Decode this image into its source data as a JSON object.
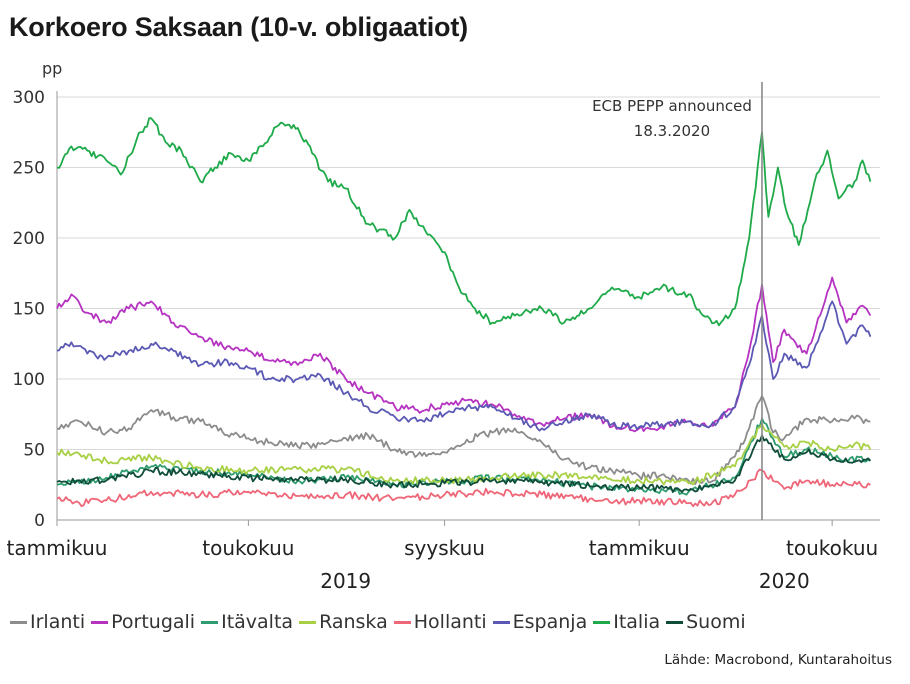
{
  "title": "Korkoero Saksaan (10-v. obligaatiot)",
  "source": "Lähde: Macrobond, Kuntarahoitus",
  "chart_data": {
    "type": "line",
    "title": "Korkoero Saksaan (10-v. obligaatiot)",
    "unit": "pp",
    "xlabel": "",
    "ylabel": "pp",
    "ylim": [
      0,
      300
    ],
    "y_ticks": [
      0,
      50,
      100,
      150,
      200,
      250,
      300
    ],
    "xlim": [
      "2019-01-01",
      "2020-05-31"
    ],
    "x_ticks": [
      {
        "date": "2019-01-01",
        "label": "tammikuu"
      },
      {
        "date": "2019-05-01",
        "label": "toukokuu"
      },
      {
        "date": "2019-09-01",
        "label": "syyskuu"
      },
      {
        "date": "2020-01-01",
        "label": "tammikuu"
      },
      {
        "date": "2020-05-01",
        "label": "toukokuu"
      }
    ],
    "year_labels": [
      {
        "date": "2019-07-01",
        "label": "2019"
      },
      {
        "date": "2020-04-01",
        "label": "2020"
      }
    ],
    "grid": true,
    "legend_position": "bottom",
    "annotation": {
      "date": "2020-03-18",
      "lines": [
        "ECB PEPP announced",
        "18.3.2020"
      ]
    },
    "series": [
      {
        "name": "Irlanti",
        "color": "#8c8c8c",
        "points": [
          [
            "2019-01-01",
            65
          ],
          [
            "2019-01-15",
            70
          ],
          [
            "2019-02-01",
            62
          ],
          [
            "2019-02-15",
            65
          ],
          [
            "2019-03-01",
            78
          ],
          [
            "2019-03-15",
            73
          ],
          [
            "2019-04-01",
            70
          ],
          [
            "2019-04-15",
            62
          ],
          [
            "2019-05-01",
            58
          ],
          [
            "2019-05-15",
            55
          ],
          [
            "2019-06-01",
            52
          ],
          [
            "2019-06-15",
            54
          ],
          [
            "2019-07-01",
            58
          ],
          [
            "2019-07-15",
            60
          ],
          [
            "2019-08-01",
            50
          ],
          [
            "2019-08-15",
            46
          ],
          [
            "2019-09-01",
            48
          ],
          [
            "2019-09-15",
            57
          ],
          [
            "2019-10-01",
            62
          ],
          [
            "2019-10-15",
            65
          ],
          [
            "2019-11-01",
            55
          ],
          [
            "2019-11-15",
            43
          ],
          [
            "2019-12-01",
            37
          ],
          [
            "2019-12-15",
            35
          ],
          [
            "2020-01-01",
            31
          ],
          [
            "2020-01-15",
            32
          ],
          [
            "2020-02-01",
            28
          ],
          [
            "2020-02-15",
            27
          ],
          [
            "2020-03-01",
            45
          ],
          [
            "2020-03-10",
            65
          ],
          [
            "2020-03-18",
            88
          ],
          [
            "2020-03-25",
            62
          ],
          [
            "2020-04-01",
            58
          ],
          [
            "2020-04-15",
            72
          ],
          [
            "2020-05-01",
            70
          ],
          [
            "2020-05-15",
            72
          ],
          [
            "2020-05-25",
            70
          ]
        ]
      },
      {
        "name": "Portugali",
        "color": "#b633c2",
        "points": [
          [
            "2019-01-01",
            150
          ],
          [
            "2019-01-10",
            160
          ],
          [
            "2019-01-20",
            147
          ],
          [
            "2019-02-01",
            140
          ],
          [
            "2019-02-15",
            150
          ],
          [
            "2019-03-01",
            155
          ],
          [
            "2019-03-15",
            140
          ],
          [
            "2019-04-01",
            130
          ],
          [
            "2019-04-15",
            123
          ],
          [
            "2019-05-01",
            120
          ],
          [
            "2019-05-15",
            113
          ],
          [
            "2019-06-01",
            110
          ],
          [
            "2019-06-15",
            118
          ],
          [
            "2019-07-01",
            100
          ],
          [
            "2019-07-15",
            90
          ],
          [
            "2019-08-01",
            80
          ],
          [
            "2019-08-15",
            78
          ],
          [
            "2019-09-01",
            82
          ],
          [
            "2019-09-15",
            85
          ],
          [
            "2019-10-01",
            82
          ],
          [
            "2019-10-15",
            75
          ],
          [
            "2019-11-01",
            68
          ],
          [
            "2019-11-15",
            72
          ],
          [
            "2019-12-01",
            75
          ],
          [
            "2019-12-15",
            66
          ],
          [
            "2020-01-01",
            65
          ],
          [
            "2020-01-15",
            66
          ],
          [
            "2020-02-01",
            70
          ],
          [
            "2020-02-15",
            67
          ],
          [
            "2020-03-01",
            80
          ],
          [
            "2020-03-10",
            120
          ],
          [
            "2020-03-18",
            167
          ],
          [
            "2020-03-25",
            112
          ],
          [
            "2020-04-01",
            135
          ],
          [
            "2020-04-15",
            118
          ],
          [
            "2020-04-25",
            150
          ],
          [
            "2020-05-01",
            172
          ],
          [
            "2020-05-10",
            140
          ],
          [
            "2020-05-20",
            152
          ],
          [
            "2020-05-25",
            145
          ]
        ]
      },
      {
        "name": "Itävalta",
        "color": "#2e9c6e",
        "points": [
          [
            "2019-01-01",
            25
          ],
          [
            "2019-02-01",
            30
          ],
          [
            "2019-03-01",
            38
          ],
          [
            "2019-04-01",
            35
          ],
          [
            "2019-05-01",
            32
          ],
          [
            "2019-06-01",
            28
          ],
          [
            "2019-07-01",
            30
          ],
          [
            "2019-08-01",
            25
          ],
          [
            "2019-09-01",
            27
          ],
          [
            "2019-10-01",
            30
          ],
          [
            "2019-11-01",
            28
          ],
          [
            "2019-12-01",
            24
          ],
          [
            "2020-01-01",
            22
          ],
          [
            "2020-02-01",
            20
          ],
          [
            "2020-03-01",
            30
          ],
          [
            "2020-03-18",
            72
          ],
          [
            "2020-04-01",
            45
          ],
          [
            "2020-04-15",
            50
          ],
          [
            "2020-05-01",
            45
          ],
          [
            "2020-05-25",
            42
          ]
        ]
      },
      {
        "name": "Ranska",
        "color": "#a8d045",
        "points": [
          [
            "2019-01-01",
            48
          ],
          [
            "2019-01-15",
            47
          ],
          [
            "2019-02-01",
            42
          ],
          [
            "2019-03-01",
            44
          ],
          [
            "2019-04-01",
            37
          ],
          [
            "2019-05-01",
            35
          ],
          [
            "2019-06-01",
            36
          ],
          [
            "2019-07-01",
            36
          ],
          [
            "2019-08-01",
            28
          ],
          [
            "2019-09-01",
            28
          ],
          [
            "2019-10-01",
            30
          ],
          [
            "2019-11-01",
            32
          ],
          [
            "2019-12-01",
            31
          ],
          [
            "2020-01-01",
            28
          ],
          [
            "2020-02-01",
            26
          ],
          [
            "2020-03-01",
            38
          ],
          [
            "2020-03-18",
            68
          ],
          [
            "2020-04-01",
            52
          ],
          [
            "2020-04-15",
            55
          ],
          [
            "2020-05-01",
            50
          ],
          [
            "2020-05-15",
            54
          ],
          [
            "2020-05-25",
            50
          ]
        ]
      },
      {
        "name": "Hollanti",
        "color": "#ee6677",
        "points": [
          [
            "2019-01-01",
            15
          ],
          [
            "2019-01-15",
            12
          ],
          [
            "2019-02-01",
            14
          ],
          [
            "2019-03-01",
            20
          ],
          [
            "2019-04-01",
            18
          ],
          [
            "2019-05-01",
            20
          ],
          [
            "2019-06-01",
            17
          ],
          [
            "2019-07-01",
            18
          ],
          [
            "2019-08-01",
            15
          ],
          [
            "2019-09-01",
            18
          ],
          [
            "2019-10-01",
            20
          ],
          [
            "2019-11-01",
            18
          ],
          [
            "2019-12-01",
            15
          ],
          [
            "2019-12-15",
            12
          ],
          [
            "2020-01-01",
            14
          ],
          [
            "2020-02-01",
            12
          ],
          [
            "2020-02-15",
            11
          ],
          [
            "2020-03-01",
            18
          ],
          [
            "2020-03-18",
            35
          ],
          [
            "2020-04-01",
            22
          ],
          [
            "2020-04-15",
            28
          ],
          [
            "2020-05-01",
            25
          ],
          [
            "2020-05-25",
            25
          ]
        ]
      },
      {
        "name": "Espanja",
        "color": "#5c59b4",
        "points": [
          [
            "2019-01-01",
            120
          ],
          [
            "2019-01-10",
            126
          ],
          [
            "2019-01-20",
            118
          ],
          [
            "2019-02-01",
            115
          ],
          [
            "2019-02-15",
            120
          ],
          [
            "2019-03-01",
            125
          ],
          [
            "2019-03-15",
            120
          ],
          [
            "2019-04-01",
            110
          ],
          [
            "2019-04-15",
            112
          ],
          [
            "2019-05-01",
            108
          ],
          [
            "2019-05-15",
            100
          ],
          [
            "2019-06-01",
            100
          ],
          [
            "2019-06-15",
            103
          ],
          [
            "2019-07-01",
            90
          ],
          [
            "2019-07-15",
            80
          ],
          [
            "2019-08-01",
            73
          ],
          [
            "2019-08-15",
            70
          ],
          [
            "2019-09-01",
            75
          ],
          [
            "2019-09-15",
            80
          ],
          [
            "2019-10-01",
            80
          ],
          [
            "2019-10-15",
            72
          ],
          [
            "2019-11-01",
            65
          ],
          [
            "2019-11-15",
            70
          ],
          [
            "2019-12-01",
            75
          ],
          [
            "2019-12-15",
            68
          ],
          [
            "2020-01-01",
            66
          ],
          [
            "2020-01-15",
            68
          ],
          [
            "2020-02-01",
            70
          ],
          [
            "2020-02-15",
            67
          ],
          [
            "2020-03-01",
            80
          ],
          [
            "2020-03-10",
            110
          ],
          [
            "2020-03-18",
            145
          ],
          [
            "2020-03-25",
            100
          ],
          [
            "2020-04-01",
            118
          ],
          [
            "2020-04-15",
            108
          ],
          [
            "2020-04-25",
            135
          ],
          [
            "2020-05-01",
            155
          ],
          [
            "2020-05-10",
            125
          ],
          [
            "2020-05-20",
            138
          ],
          [
            "2020-05-25",
            130
          ]
        ]
      },
      {
        "name": "Italia",
        "color": "#1faa4a",
        "points": [
          [
            "2019-01-01",
            250
          ],
          [
            "2019-01-10",
            265
          ],
          [
            "2019-01-20",
            262
          ],
          [
            "2019-02-01",
            255
          ],
          [
            "2019-02-10",
            245
          ],
          [
            "2019-02-20",
            270
          ],
          [
            "2019-03-01",
            285
          ],
          [
            "2019-03-10",
            268
          ],
          [
            "2019-03-20",
            262
          ],
          [
            "2019-04-01",
            240
          ],
          [
            "2019-04-10",
            250
          ],
          [
            "2019-04-20",
            260
          ],
          [
            "2019-05-01",
            255
          ],
          [
            "2019-05-10",
            265
          ],
          [
            "2019-05-20",
            280
          ],
          [
            "2019-06-01",
            278
          ],
          [
            "2019-06-10",
            260
          ],
          [
            "2019-06-20",
            240
          ],
          [
            "2019-07-01",
            235
          ],
          [
            "2019-07-15",
            210
          ],
          [
            "2019-08-01",
            200
          ],
          [
            "2019-08-10",
            220
          ],
          [
            "2019-08-20",
            205
          ],
          [
            "2019-09-01",
            190
          ],
          [
            "2019-09-10",
            165
          ],
          [
            "2019-09-20",
            150
          ],
          [
            "2019-10-01",
            140
          ],
          [
            "2019-10-15",
            145
          ],
          [
            "2019-11-01",
            150
          ],
          [
            "2019-11-15",
            140
          ],
          [
            "2019-12-01",
            150
          ],
          [
            "2019-12-15",
            165
          ],
          [
            "2020-01-01",
            158
          ],
          [
            "2020-01-15",
            165
          ],
          [
            "2020-02-01",
            160
          ],
          [
            "2020-02-10",
            145
          ],
          [
            "2020-02-20",
            138
          ],
          [
            "2020-03-01",
            150
          ],
          [
            "2020-03-10",
            200
          ],
          [
            "2020-03-18",
            275
          ],
          [
            "2020-03-22",
            215
          ],
          [
            "2020-03-28",
            250
          ],
          [
            "2020-04-01",
            225
          ],
          [
            "2020-04-10",
            195
          ],
          [
            "2020-04-20",
            240
          ],
          [
            "2020-04-28",
            262
          ],
          [
            "2020-05-05",
            228
          ],
          [
            "2020-05-15",
            240
          ],
          [
            "2020-05-20",
            255
          ],
          [
            "2020-05-25",
            240
          ]
        ]
      },
      {
        "name": "Suomi",
        "color": "#0f4c3a",
        "points": [
          [
            "2019-01-01",
            27
          ],
          [
            "2019-02-01",
            28
          ],
          [
            "2019-03-01",
            35
          ],
          [
            "2019-04-01",
            33
          ],
          [
            "2019-05-01",
            30
          ],
          [
            "2019-06-01",
            28
          ],
          [
            "2019-07-01",
            29
          ],
          [
            "2019-08-01",
            25
          ],
          [
            "2019-09-01",
            26
          ],
          [
            "2019-10-01",
            28
          ],
          [
            "2019-11-01",
            27
          ],
          [
            "2019-12-01",
            24
          ],
          [
            "2020-01-01",
            23
          ],
          [
            "2020-02-01",
            21
          ],
          [
            "2020-03-01",
            28
          ],
          [
            "2020-03-18",
            60
          ],
          [
            "2020-04-01",
            43
          ],
          [
            "2020-04-15",
            48
          ],
          [
            "2020-05-01",
            43
          ],
          [
            "2020-05-25",
            42
          ]
        ]
      }
    ]
  }
}
